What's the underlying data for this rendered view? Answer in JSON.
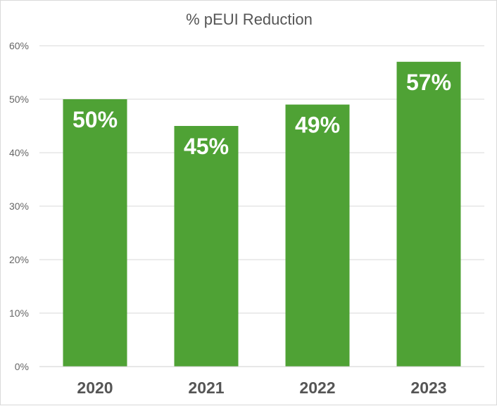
{
  "chart_data": {
    "type": "bar",
    "title": "% pEUI Reduction",
    "xlabel": "",
    "ylabel": "",
    "categories": [
      "2020",
      "2021",
      "2022",
      "2023"
    ],
    "values": [
      50,
      45,
      49,
      57
    ],
    "data_labels": [
      "50%",
      "45%",
      "49%",
      "57%"
    ],
    "ylim": [
      0,
      60
    ],
    "y_ticks": [
      0,
      10,
      20,
      30,
      40,
      50,
      60
    ],
    "y_tick_labels": [
      "0%",
      "10%",
      "20%",
      "30%",
      "40%",
      "50%",
      "60%"
    ],
    "grid": true,
    "legend": "none",
    "colors": {
      "bar": "#4fa235",
      "grid": "#d9d9d9",
      "title": "#555555",
      "data_label": "#ffffff"
    }
  }
}
